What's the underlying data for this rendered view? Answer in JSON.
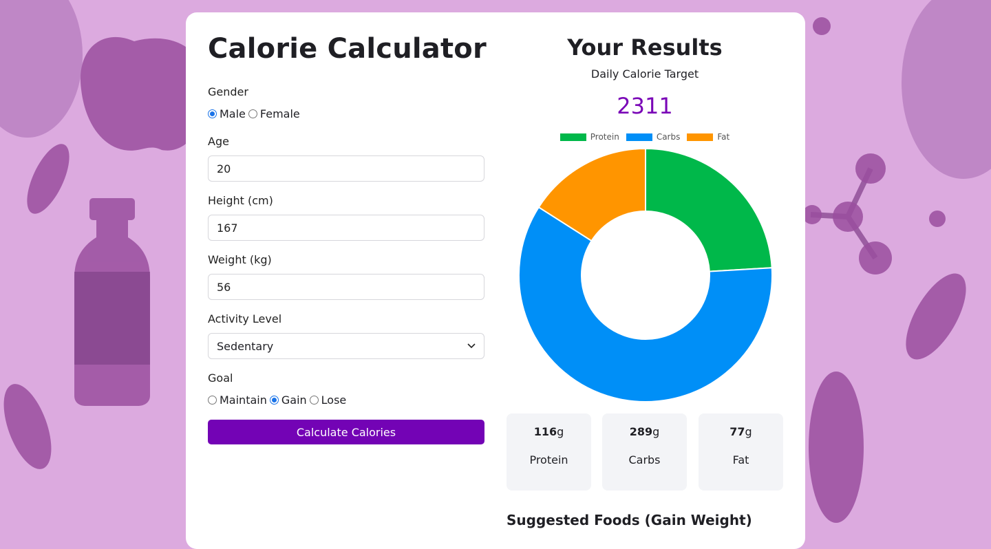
{
  "app": {
    "title": "Calorie Calculator"
  },
  "form": {
    "gender": {
      "label": "Gender",
      "options": [
        "Male",
        "Female"
      ],
      "selected": "Male"
    },
    "age": {
      "label": "Age",
      "value": "20"
    },
    "height": {
      "label": "Height (cm)",
      "value": "167"
    },
    "weight": {
      "label": "Weight (kg)",
      "value": "56"
    },
    "activity": {
      "label": "Activity Level",
      "selected": "Sedentary"
    },
    "goal": {
      "label": "Goal",
      "options": [
        "Maintain",
        "Gain",
        "Lose"
      ],
      "selected": "Gain"
    },
    "submit_label": "Calculate Calories"
  },
  "results": {
    "title": "Your Results",
    "subtitle": "Daily Calorie Target",
    "calories": "2311",
    "macros": [
      {
        "name": "Protein",
        "grams": "116",
        "unit": "g",
        "color": "#00b84a"
      },
      {
        "name": "Carbs",
        "grams": "289",
        "unit": "g",
        "color": "#008ff7"
      },
      {
        "name": "Fat",
        "grams": "77",
        "unit": "g",
        "color": "#ff9500"
      }
    ],
    "suggested_title": "Suggested Foods (Gain Weight)"
  },
  "chart_data": {
    "type": "pie",
    "categories": [
      "Protein",
      "Carbs",
      "Fat"
    ],
    "values": [
      116,
      289,
      77
    ],
    "colors": [
      "#00b84a",
      "#008ff7",
      "#ff9500"
    ],
    "legend": "top"
  }
}
